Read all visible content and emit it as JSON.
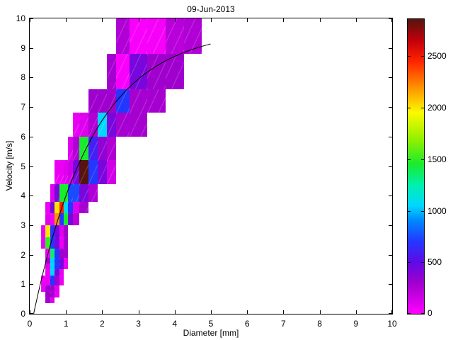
{
  "title": "09-Jun-2013",
  "chart_data": {
    "type": "heatmap",
    "title": "09-Jun-2013",
    "xlabel": "Diameter [mm]",
    "ylabel": "Velocity [m/s]",
    "xlim": [
      0,
      10
    ],
    "ylim": [
      0,
      10
    ],
    "x_ticks": [
      0,
      1,
      2,
      3,
      4,
      5,
      6,
      7,
      8,
      9,
      10
    ],
    "y_ticks": [
      0,
      1,
      2,
      3,
      4,
      5,
      6,
      7,
      8,
      9,
      10
    ],
    "grid": false,
    "colorbar": {
      "position": "right",
      "min": 0,
      "max": 2860,
      "ticks": [
        0,
        500,
        1000,
        1500,
        2000,
        2500
      ]
    },
    "colormap_stops": [
      [
        0,
        255,
        0,
        255
      ],
      [
        300,
        160,
        0,
        205
      ],
      [
        500,
        95,
        10,
        230
      ],
      [
        700,
        35,
        55,
        255
      ],
      [
        900,
        0,
        135,
        255
      ],
      [
        1050,
        0,
        215,
        255
      ],
      [
        1250,
        0,
        240,
        175
      ],
      [
        1450,
        25,
        235,
        45
      ],
      [
        1700,
        150,
        240,
        0
      ],
      [
        1950,
        250,
        250,
        0
      ],
      [
        2200,
        255,
        145,
        0
      ],
      [
        2450,
        255,
        35,
        0
      ],
      [
        2650,
        195,
        0,
        10
      ],
      [
        2860,
        85,
        20,
        15
      ]
    ],
    "cells": [
      [
        0.437,
        0.562,
        0.35,
        0.55,
        280
      ],
      [
        0.562,
        0.687,
        0.35,
        0.55,
        100
      ],
      [
        0.437,
        0.562,
        0.55,
        0.75,
        300
      ],
      [
        0.562,
        0.687,
        0.55,
        0.75,
        280
      ],
      [
        0.687,
        0.812,
        0.55,
        0.75,
        60
      ],
      [
        0.312,
        0.437,
        0.75,
        0.95,
        60
      ],
      [
        0.437,
        0.562,
        0.75,
        0.95,
        300
      ],
      [
        0.562,
        0.687,
        0.75,
        0.95,
        300
      ],
      [
        0.687,
        0.812,
        0.75,
        0.95,
        80
      ],
      [
        0.312,
        0.437,
        0.95,
        1.3,
        60
      ],
      [
        0.437,
        0.562,
        0.95,
        1.3,
        60
      ],
      [
        0.562,
        0.687,
        0.95,
        1.3,
        700
      ],
      [
        0.687,
        0.812,
        0.95,
        1.3,
        300
      ],
      [
        0.812,
        0.937,
        0.95,
        1.3,
        60
      ],
      [
        0.437,
        0.562,
        1.3,
        1.5,
        60
      ],
      [
        0.562,
        0.687,
        1.3,
        1.5,
        1050
      ],
      [
        0.687,
        0.812,
        1.3,
        1.5,
        420
      ],
      [
        0.812,
        0.937,
        1.3,
        1.5,
        60
      ],
      [
        0.437,
        0.562,
        1.5,
        1.7,
        100
      ],
      [
        0.562,
        0.687,
        1.5,
        1.7,
        1050
      ],
      [
        0.687,
        0.812,
        1.5,
        1.7,
        700
      ],
      [
        0.812,
        0.937,
        1.5,
        1.7,
        420
      ],
      [
        0.937,
        1.062,
        1.5,
        1.7,
        60
      ],
      [
        0.437,
        0.562,
        1.7,
        1.9,
        280
      ],
      [
        0.562,
        0.687,
        1.7,
        1.9,
        1050
      ],
      [
        0.687,
        0.812,
        1.7,
        1.9,
        700
      ],
      [
        0.812,
        0.937,
        1.7,
        1.9,
        420
      ],
      [
        0.937,
        1.062,
        1.7,
        1.9,
        60
      ],
      [
        0.437,
        0.562,
        1.9,
        2.2,
        60
      ],
      [
        0.562,
        0.687,
        1.9,
        2.2,
        1350
      ],
      [
        0.687,
        0.812,
        1.9,
        2.2,
        700
      ],
      [
        0.812,
        0.937,
        1.9,
        2.2,
        300
      ],
      [
        0.937,
        1.062,
        1.9,
        2.2,
        280
      ],
      [
        0.312,
        0.437,
        2.2,
        2.6,
        60
      ],
      [
        0.437,
        0.562,
        2.2,
        2.6,
        1500
      ],
      [
        0.562,
        0.687,
        2.2,
        2.6,
        700
      ],
      [
        0.687,
        0.812,
        2.2,
        2.6,
        420
      ],
      [
        0.812,
        0.937,
        2.2,
        2.6,
        60
      ],
      [
        0.937,
        1.062,
        2.2,
        2.6,
        280
      ],
      [
        0.312,
        0.437,
        2.6,
        3.0,
        60
      ],
      [
        0.437,
        0.562,
        2.6,
        3.0,
        2000
      ],
      [
        0.562,
        0.687,
        2.6,
        3.0,
        700
      ],
      [
        0.687,
        0.812,
        2.6,
        3.0,
        420
      ],
      [
        0.812,
        0.937,
        2.6,
        3.0,
        100
      ],
      [
        0.937,
        1.062,
        2.6,
        3.0,
        280
      ],
      [
        0.437,
        0.562,
        3.0,
        3.4,
        100
      ],
      [
        0.562,
        0.687,
        3.0,
        3.4,
        60
      ],
      [
        0.687,
        0.812,
        3.0,
        3.4,
        2200
      ],
      [
        0.812,
        0.937,
        3.0,
        3.4,
        700
      ],
      [
        0.937,
        1.062,
        3.0,
        3.4,
        1450
      ],
      [
        1.062,
        1.187,
        3.0,
        3.4,
        420
      ],
      [
        1.187,
        1.375,
        3.0,
        3.4,
        220
      ],
      [
        0.437,
        0.562,
        3.4,
        3.8,
        60
      ],
      [
        0.562,
        0.687,
        3.4,
        3.8,
        420
      ],
      [
        0.687,
        0.812,
        3.4,
        3.8,
        2000
      ],
      [
        0.812,
        0.937,
        3.4,
        3.8,
        2450
      ],
      [
        0.937,
        1.062,
        3.4,
        3.8,
        1050
      ],
      [
        1.062,
        1.187,
        3.4,
        3.8,
        700
      ],
      [
        1.187,
        1.375,
        3.4,
        3.8,
        100
      ],
      [
        1.375,
        1.625,
        3.4,
        3.8,
        280
      ],
      [
        0.562,
        0.687,
        3.8,
        4.4,
        100
      ],
      [
        0.687,
        0.812,
        3.8,
        4.4,
        420
      ],
      [
        0.812,
        0.937,
        3.8,
        4.4,
        1450
      ],
      [
        0.937,
        1.062,
        3.8,
        4.4,
        1450
      ],
      [
        1.062,
        1.187,
        3.8,
        4.4,
        750
      ],
      [
        1.187,
        1.375,
        3.8,
        4.4,
        750
      ],
      [
        1.375,
        1.625,
        3.8,
        4.4,
        420
      ],
      [
        1.625,
        1.875,
        3.8,
        4.4,
        250
      ],
      [
        0.687,
        0.812,
        4.4,
        5.2,
        60
      ],
      [
        0.812,
        0.937,
        4.4,
        5.2,
        60
      ],
      [
        0.937,
        1.062,
        4.4,
        5.2,
        100
      ],
      [
        1.062,
        1.187,
        4.4,
        5.2,
        150
      ],
      [
        1.187,
        1.375,
        4.4,
        5.2,
        420
      ],
      [
        1.375,
        1.625,
        4.4,
        5.2,
        2860
      ],
      [
        1.625,
        1.875,
        4.4,
        5.2,
        700
      ],
      [
        1.875,
        2.125,
        4.4,
        5.2,
        420
      ],
      [
        2.125,
        2.375,
        4.4,
        5.2,
        150
      ],
      [
        1.062,
        1.187,
        5.2,
        6.0,
        100
      ],
      [
        1.187,
        1.375,
        5.2,
        6.0,
        250
      ],
      [
        1.375,
        1.625,
        5.2,
        6.0,
        1450
      ],
      [
        1.625,
        1.875,
        5.2,
        6.0,
        600
      ],
      [
        1.875,
        2.125,
        5.2,
        6.0,
        350
      ],
      [
        2.125,
        2.375,
        5.2,
        6.0,
        250
      ],
      [
        1.187,
        1.375,
        6.0,
        6.8,
        60
      ],
      [
        1.375,
        1.625,
        6.0,
        6.8,
        100
      ],
      [
        1.625,
        1.875,
        6.0,
        6.8,
        250
      ],
      [
        1.875,
        2.125,
        6.0,
        6.8,
        1050
      ],
      [
        2.125,
        2.375,
        6.0,
        6.8,
        420
      ],
      [
        2.375,
        2.75,
        6.0,
        6.8,
        280
      ],
      [
        2.75,
        3.25,
        6.0,
        6.8,
        280
      ],
      [
        1.625,
        1.875,
        6.8,
        7.6,
        300
      ],
      [
        1.875,
        2.125,
        6.8,
        7.6,
        300
      ],
      [
        2.125,
        2.375,
        6.8,
        7.6,
        300
      ],
      [
        2.375,
        2.75,
        6.8,
        7.6,
        700
      ],
      [
        2.75,
        3.25,
        6.8,
        7.6,
        280
      ],
      [
        3.25,
        3.75,
        6.8,
        7.6,
        280
      ],
      [
        2.125,
        2.375,
        7.6,
        8.8,
        280
      ],
      [
        2.375,
        2.75,
        7.6,
        8.8,
        20
      ],
      [
        2.75,
        3.25,
        7.6,
        8.8,
        420
      ],
      [
        3.25,
        3.75,
        7.6,
        8.8,
        300
      ],
      [
        3.75,
        4.25,
        7.6,
        8.8,
        300
      ],
      [
        2.375,
        2.75,
        8.8,
        10,
        250
      ],
      [
        2.75,
        3.25,
        8.8,
        10,
        20
      ],
      [
        3.25,
        3.75,
        8.8,
        10,
        30
      ],
      [
        3.75,
        4.25,
        8.8,
        10,
        220
      ],
      [
        4.25,
        4.75,
        8.8,
        10,
        250
      ]
    ],
    "fit_curve": {
      "name": "terminal-velocity-fit",
      "formula": "v = 9.65 - 10.3*exp(-0.6*D)",
      "a": 9.65,
      "b": 10.3,
      "k": 0.6,
      "d_start": 0.109,
      "d_end": 5.0,
      "color": "#000000"
    }
  }
}
